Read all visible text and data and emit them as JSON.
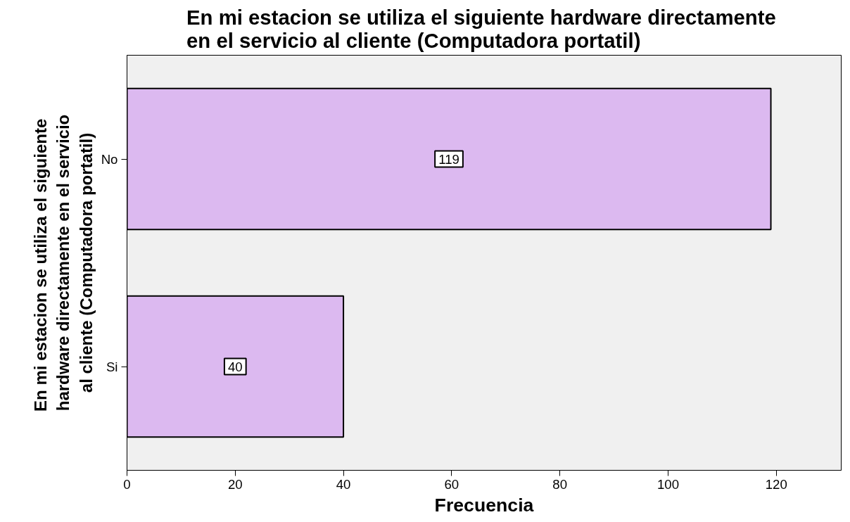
{
  "chart_data": {
    "type": "bar",
    "orientation": "horizontal",
    "title": "En mi estacion se utiliza  el siguiente hardware directamente\nen el servicio al cliente (Computadora portatil)",
    "xlabel": "Frecuencia",
    "ylabel": "En mi estacion se utiliza  el siguiente\nhardware directamente en el servicio\nal cliente (Computadora portatil)",
    "categories": [
      "No",
      "Si"
    ],
    "values": [
      119,
      40
    ],
    "color": "#dcb9f0",
    "xlim": [
      0,
      132
    ],
    "xticks": [
      0,
      20,
      40,
      60,
      80,
      100,
      120
    ],
    "data_labels": true,
    "grid": false
  }
}
